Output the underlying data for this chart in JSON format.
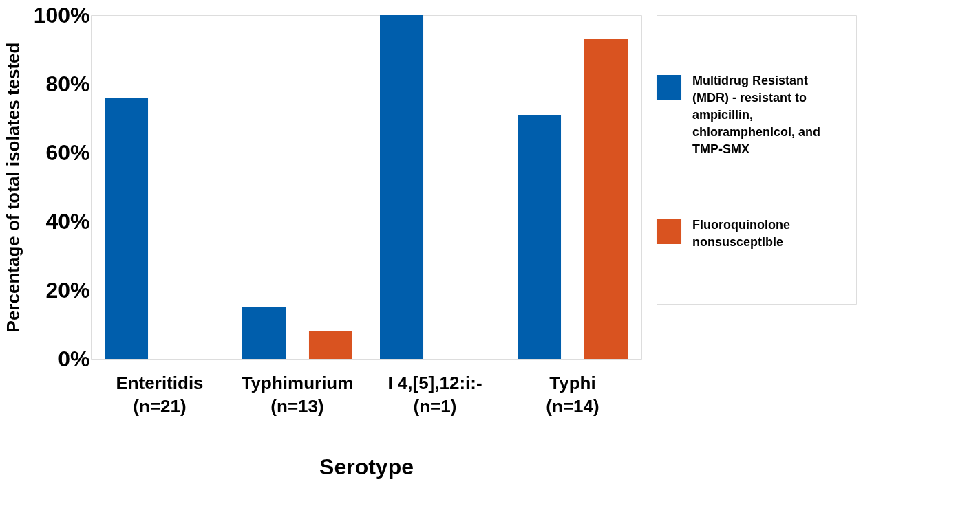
{
  "chart_data": {
    "type": "bar",
    "xlabel": "Serotype",
    "ylabel": "Percentage of total isolates tested",
    "categories": [
      "Enteritidis\n(n=21)",
      "Typhimurium\n(n=13)",
      "I 4,[5],12:i:-\n(n=1)",
      "Typhi\n(n=14)"
    ],
    "series": [
      {
        "name": "Multidrug Resistant (MDR) - resistant to ampicillin, chloramphenicol, and TMP-SMX",
        "color": "#005eac",
        "values": [
          76,
          15,
          100,
          71
        ]
      },
      {
        "name": "Fluoroquinolone nonsusceptible",
        "color": "#d95320",
        "values": [
          0,
          8,
          0,
          93
        ]
      }
    ],
    "ylim": [
      0,
      100
    ],
    "yticks": [
      {
        "value": 0,
        "label": "0%"
      },
      {
        "value": 20,
        "label": "20%"
      },
      {
        "value": 40,
        "label": "40%"
      },
      {
        "value": 60,
        "label": "60%"
      },
      {
        "value": 80,
        "label": "80%"
      },
      {
        "value": 100,
        "label": "100%"
      }
    ],
    "grid": false,
    "legend": "right"
  }
}
